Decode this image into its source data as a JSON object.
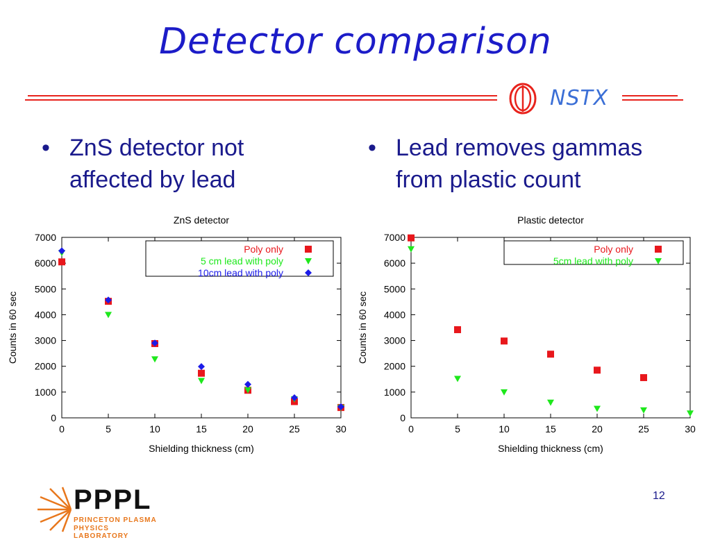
{
  "slide": {
    "title": "Detector comparison",
    "logo_text": "NSTX",
    "bullets": [
      {
        "symbol": "•",
        "line1": "ZnS detector not",
        "line2": "affected by lead"
      },
      {
        "symbol": "•",
        "line1": "Lead removes gammas",
        "line2": "from plastic count"
      }
    ],
    "page_number": "12",
    "footer_logo": {
      "big": "PPPL",
      "line1": "PRINCETON PLASMA",
      "line2": "PHYSICS LABORATORY"
    }
  },
  "colors": {
    "title": "#1c1cc8",
    "rule": "#e8231c",
    "poly_only": "#e8171c",
    "lead5": "#1ee81c",
    "lead10": "#1c1ce8"
  },
  "chart_data": [
    {
      "type": "scatter",
      "title": "ZnS detector",
      "xlabel": "Shielding thickness (cm)",
      "ylabel": "Counts in 60 sec",
      "xlim": [
        0,
        30
      ],
      "ylim": [
        0,
        7000
      ],
      "xticks": [
        0,
        5,
        10,
        15,
        20,
        25,
        30
      ],
      "yticks": [
        0,
        1000,
        2000,
        3000,
        4000,
        5000,
        6000,
        7000
      ],
      "grid": false,
      "legend_position": "top-right",
      "series": [
        {
          "name": "Poly only",
          "color": "#e8171c",
          "marker": "square",
          "x": [
            0,
            5,
            10,
            15,
            20,
            25,
            30
          ],
          "y": [
            6050,
            4520,
            2880,
            1730,
            1070,
            630,
            400
          ]
        },
        {
          "name": "5 cm lead with poly",
          "color": "#1ee81c",
          "marker": "triangle-down",
          "x": [
            0,
            5,
            10,
            15,
            20,
            25,
            30
          ],
          "y": [
            6400,
            4000,
            2280,
            1440,
            1080,
            730,
            400
          ]
        },
        {
          "name": "10cm lead with poly",
          "color": "#1c1ce8",
          "marker": "diamond",
          "x": [
            0,
            5,
            10,
            15,
            20,
            25,
            30
          ],
          "y": [
            6480,
            4570,
            2900,
            1990,
            1300,
            780,
            430
          ]
        }
      ]
    },
    {
      "type": "scatter",
      "title": "Plastic detector",
      "xlabel": "Shielding thickness (cm)",
      "ylabel": "Counts in 60 sec",
      "xlim": [
        0,
        30
      ],
      "ylim": [
        0,
        7000
      ],
      "xticks": [
        0,
        5,
        10,
        15,
        20,
        25,
        30
      ],
      "yticks": [
        0,
        1000,
        2000,
        3000,
        4000,
        5000,
        6000,
        7000
      ],
      "grid": false,
      "legend_position": "top-right",
      "series": [
        {
          "name": "Poly only",
          "color": "#e8171c",
          "marker": "square",
          "x": [
            0,
            5,
            10,
            15,
            20,
            25
          ],
          "y": [
            6980,
            3420,
            2980,
            2470,
            1850,
            1560
          ]
        },
        {
          "name": "5cm lead with poly",
          "color": "#1ee81c",
          "marker": "triangle-down",
          "x": [
            0,
            5,
            10,
            15,
            20,
            25,
            30
          ],
          "y": [
            6550,
            1520,
            1000,
            600,
            360,
            300,
            180
          ]
        }
      ]
    }
  ]
}
